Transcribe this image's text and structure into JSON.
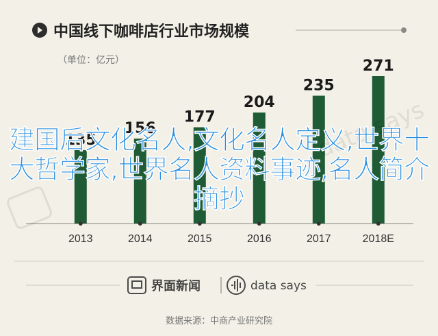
{
  "header": {
    "title": "中国线下咖啡店行业市场规模",
    "unit": "（单位：亿元）"
  },
  "chart_data": {
    "type": "bar",
    "title": "中国线下咖啡店行业市场规模",
    "ylabel": "（单位：亿元）",
    "categories": [
      "2013",
      "2014",
      "2015",
      "2016",
      "2017",
      "2018E"
    ],
    "values": [
      135,
      156,
      177,
      204,
      235,
      271
    ],
    "ylim": [
      0,
      271
    ],
    "grid": false,
    "bar_color": "#1f5c36",
    "label_color": "#1a1a1a"
  },
  "watermark": {
    "logo_text": "界面新闻",
    "brand_text": "data says"
  },
  "overlay_text": "建国后文化名人,文化名人定义,世界十大哲学家,世界名人资料事迹,名人简介摘抄",
  "footer": {
    "logo_text": "界面新闻",
    "brand_text": "data says",
    "source": "数据来源：中商产业研究院"
  },
  "colors": {
    "background": "#f3f1e7",
    "accent": "#1f5c36",
    "overlay": "#2a8fe0"
  }
}
